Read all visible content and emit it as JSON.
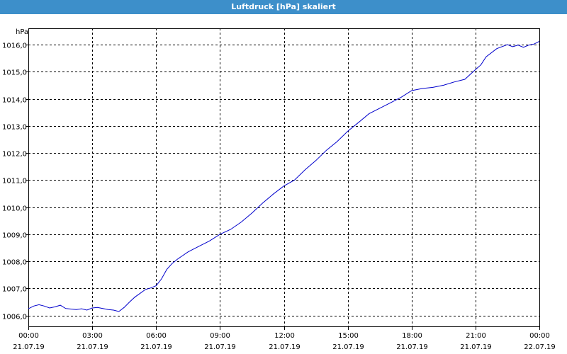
{
  "title": "Luftdruck [hPa] skaliert",
  "colors": {
    "titlebar": "#3d8fca",
    "line": "#0000cc",
    "grid": "#000000",
    "axis": "#000000"
  },
  "chart_data": {
    "type": "line",
    "title": "Luftdruck [hPa] skaliert",
    "ylabel": "hPa",
    "xlabel": "",
    "ylim": [
      1005.6,
      1016.6
    ],
    "yticks": [
      1006.0,
      1007.0,
      1008.0,
      1009.0,
      1010.0,
      1011.0,
      1012.0,
      1013.0,
      1014.0,
      1015.0,
      1016.0
    ],
    "ytick_labels": [
      "1006,0",
      "1007,0",
      "1008,0",
      "1009,0",
      "1010,0",
      "1011,0",
      "1012,0",
      "1013,0",
      "1014,0",
      "1015,0",
      "1016,0"
    ],
    "xlim": [
      0,
      24
    ],
    "xticks": [
      0,
      3,
      6,
      9,
      12,
      15,
      18,
      21,
      24
    ],
    "xtick_labels": [
      [
        "00:00",
        "21.07.19"
      ],
      [
        "03:00",
        "21.07.19"
      ],
      [
        "06:00",
        "21.07.19"
      ],
      [
        "09:00",
        "21.07.19"
      ],
      [
        "12:00",
        "21.07.19"
      ],
      [
        "15:00",
        "21.07.19"
      ],
      [
        "18:00",
        "21.07.19"
      ],
      [
        "21:00",
        "21.07.19"
      ],
      [
        "00:00",
        "22.07.19"
      ]
    ],
    "grid": true,
    "series": [
      {
        "x": [
          0.0,
          0.25,
          0.5,
          0.75,
          1.0,
          1.25,
          1.5,
          1.75,
          2.0,
          2.25,
          2.5,
          2.75,
          3.0,
          3.25,
          3.5,
          3.75,
          4.0,
          4.25,
          4.5,
          4.75,
          5.0,
          5.25,
          5.5,
          5.75,
          6.0,
          6.25,
          6.5,
          6.75,
          7.0,
          7.5,
          8.0,
          8.5,
          9.0,
          9.5,
          10.0,
          10.5,
          11.0,
          11.5,
          12.0,
          12.5,
          13.0,
          13.5,
          14.0,
          14.5,
          15.0,
          15.5,
          16.0,
          16.5,
          17.0,
          17.5,
          18.0,
          18.5,
          19.0,
          19.5,
          20.0,
          20.5,
          21.0,
          21.25,
          21.5,
          22.0,
          22.5,
          22.75,
          23.0,
          23.25,
          23.5,
          23.75,
          24.0
        ],
        "y": [
          1006.25,
          1006.35,
          1006.4,
          1006.35,
          1006.28,
          1006.32,
          1006.38,
          1006.26,
          1006.24,
          1006.22,
          1006.25,
          1006.2,
          1006.28,
          1006.3,
          1006.26,
          1006.22,
          1006.2,
          1006.15,
          1006.3,
          1006.5,
          1006.68,
          1006.82,
          1006.96,
          1007.02,
          1007.1,
          1007.35,
          1007.7,
          1007.92,
          1008.08,
          1008.35,
          1008.55,
          1008.75,
          1009.0,
          1009.18,
          1009.45,
          1009.78,
          1010.15,
          1010.48,
          1010.78,
          1011.0,
          1011.38,
          1011.72,
          1012.1,
          1012.42,
          1012.8,
          1013.12,
          1013.45,
          1013.65,
          1013.85,
          1014.05,
          1014.3,
          1014.38,
          1014.42,
          1014.5,
          1014.62,
          1014.72,
          1015.08,
          1015.25,
          1015.55,
          1015.85,
          1016.0,
          1015.92,
          1015.98,
          1015.9,
          1015.98,
          1016.02,
          1016.12
        ]
      }
    ]
  }
}
